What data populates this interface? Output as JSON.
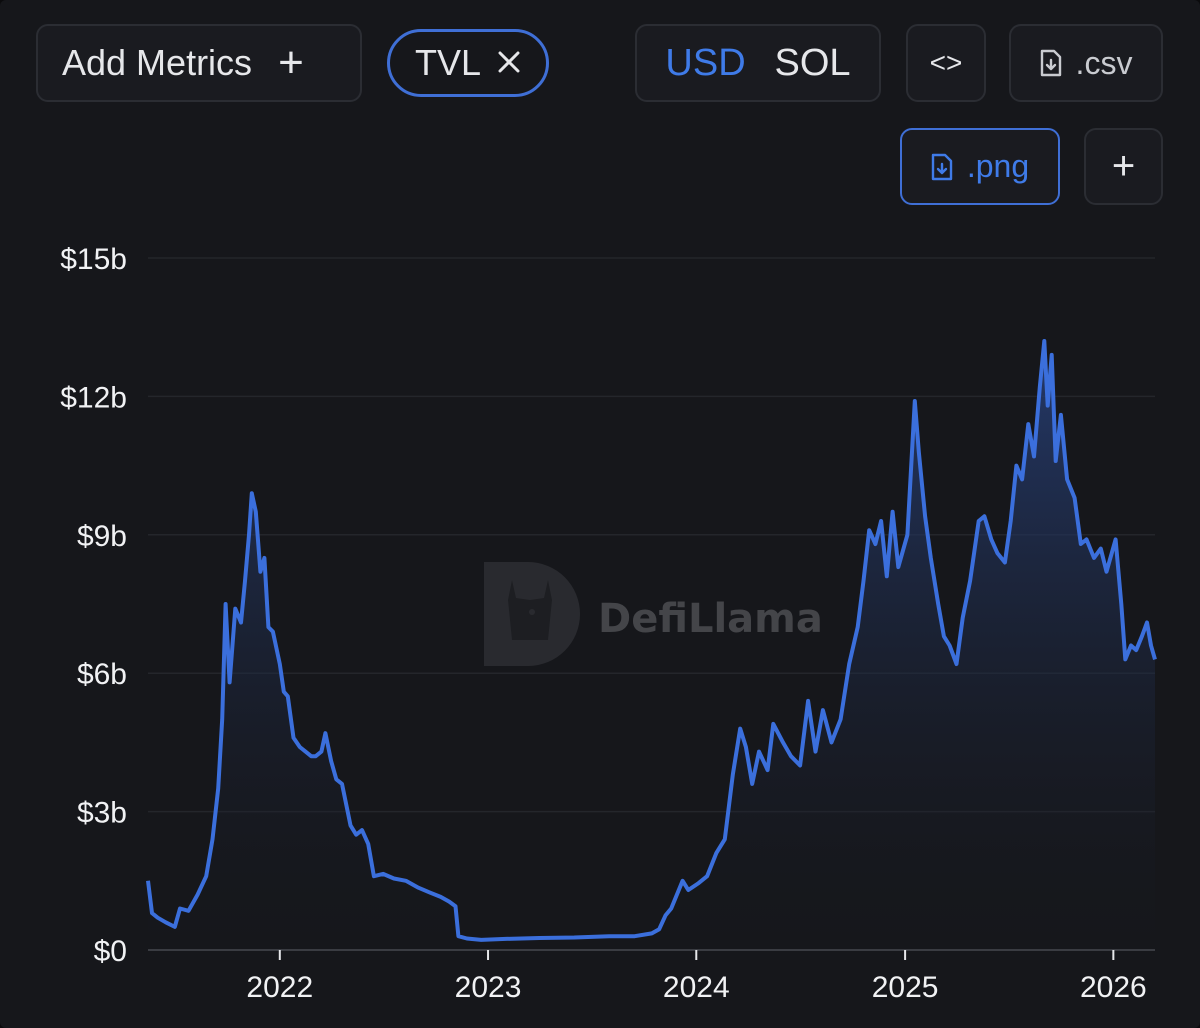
{
  "toolbar": {
    "add_metrics_label": "Add Metrics",
    "add_metrics_icon": "plus-icon",
    "metric_chip_label": "TVL",
    "metric_chip_icon": "close-icon",
    "currency_options": [
      "USD",
      "SOL"
    ],
    "currency_selected": "USD",
    "embed_label": "<>",
    "csv_label": ".csv",
    "png_label": ".png",
    "more_label": "+"
  },
  "watermark": {
    "text": "DefiLlama",
    "icon": "llama-logo-icon"
  },
  "colors": {
    "accent": "#3f7be8",
    "line": "#3b6fdc",
    "background": "#16171b"
  },
  "chart_data": {
    "type": "area",
    "title": "",
    "xlabel": "",
    "ylabel": "",
    "ylim": [
      0,
      15000000000
    ],
    "y_ticks": [
      "$15b",
      "$12b",
      "$9b",
      "$6b",
      "$3b",
      "$0"
    ],
    "x_ticks": [
      "2022",
      "2023",
      "2024",
      "2025",
      "2026"
    ],
    "grid": "horizontal",
    "series": [
      {
        "values_unit": "USD billions",
        "points": [
          [
            "2021-05-15",
            1.5
          ],
          [
            "2021-05-22",
            0.8
          ],
          [
            "2021-06-01",
            0.7
          ],
          [
            "2021-06-15",
            0.6
          ],
          [
            "2021-07-01",
            0.5
          ],
          [
            "2021-07-10",
            0.9
          ],
          [
            "2021-07-25",
            0.85
          ],
          [
            "2021-08-10",
            1.2
          ],
          [
            "2021-08-25",
            1.6
          ],
          [
            "2021-09-05",
            2.4
          ],
          [
            "2021-09-15",
            3.5
          ],
          [
            "2021-09-22",
            5.0
          ],
          [
            "2021-09-28",
            7.5
          ],
          [
            "2021-10-05",
            5.8
          ],
          [
            "2021-10-15",
            7.4
          ],
          [
            "2021-10-25",
            7.1
          ],
          [
            "2021-11-01",
            8.0
          ],
          [
            "2021-11-08",
            9.0
          ],
          [
            "2021-11-13",
            9.9
          ],
          [
            "2021-11-20",
            9.5
          ],
          [
            "2021-11-28",
            8.2
          ],
          [
            "2021-12-05",
            8.5
          ],
          [
            "2021-12-12",
            7.0
          ],
          [
            "2021-12-20",
            6.9
          ],
          [
            "2022-01-01",
            6.2
          ],
          [
            "2022-01-08",
            5.6
          ],
          [
            "2022-01-15",
            5.5
          ],
          [
            "2022-01-25",
            4.6
          ],
          [
            "2022-02-05",
            4.4
          ],
          [
            "2022-02-15",
            4.3
          ],
          [
            "2022-02-25",
            4.2
          ],
          [
            "2022-03-05",
            4.2
          ],
          [
            "2022-03-15",
            4.3
          ],
          [
            "2022-03-22",
            4.7
          ],
          [
            "2022-04-01",
            4.1
          ],
          [
            "2022-04-10",
            3.7
          ],
          [
            "2022-04-20",
            3.6
          ],
          [
            "2022-05-05",
            2.7
          ],
          [
            "2022-05-15",
            2.5
          ],
          [
            "2022-05-25",
            2.6
          ],
          [
            "2022-06-05",
            2.3
          ],
          [
            "2022-06-15",
            1.6
          ],
          [
            "2022-07-01",
            1.65
          ],
          [
            "2022-07-20",
            1.55
          ],
          [
            "2022-08-10",
            1.5
          ],
          [
            "2022-09-01",
            1.35
          ],
          [
            "2022-09-20",
            1.25
          ],
          [
            "2022-10-10",
            1.15
          ],
          [
            "2022-10-25",
            1.05
          ],
          [
            "2022-11-05",
            0.95
          ],
          [
            "2022-11-10",
            0.3
          ],
          [
            "2022-11-25",
            0.25
          ],
          [
            "2022-12-20",
            0.22
          ],
          [
            "2023-02-01",
            0.24
          ],
          [
            "2023-04-01",
            0.26
          ],
          [
            "2023-06-01",
            0.27
          ],
          [
            "2023-08-01",
            0.3
          ],
          [
            "2023-09-15",
            0.3
          ],
          [
            "2023-10-15",
            0.36
          ],
          [
            "2023-10-28",
            0.45
          ],
          [
            "2023-11-08",
            0.75
          ],
          [
            "2023-11-18",
            0.9
          ],
          [
            "2023-11-28",
            1.2
          ],
          [
            "2023-12-08",
            1.5
          ],
          [
            "2023-12-18",
            1.3
          ],
          [
            "2024-01-05",
            1.45
          ],
          [
            "2024-01-20",
            1.6
          ],
          [
            "2024-02-05",
            2.1
          ],
          [
            "2024-02-20",
            2.4
          ],
          [
            "2024-03-05",
            3.8
          ],
          [
            "2024-03-18",
            4.8
          ],
          [
            "2024-03-28",
            4.4
          ],
          [
            "2024-04-08",
            3.6
          ],
          [
            "2024-04-20",
            4.3
          ],
          [
            "2024-05-05",
            3.9
          ],
          [
            "2024-05-15",
            4.9
          ],
          [
            "2024-06-01",
            4.5
          ],
          [
            "2024-06-15",
            4.2
          ],
          [
            "2024-07-01",
            4.0
          ],
          [
            "2024-07-15",
            5.4
          ],
          [
            "2024-07-28",
            4.3
          ],
          [
            "2024-08-10",
            5.2
          ],
          [
            "2024-08-25",
            4.5
          ],
          [
            "2024-09-10",
            5.0
          ],
          [
            "2024-09-25",
            6.2
          ],
          [
            "2024-10-10",
            7.0
          ],
          [
            "2024-10-20",
            8.0
          ],
          [
            "2024-10-30",
            9.1
          ],
          [
            "2024-11-10",
            8.8
          ],
          [
            "2024-11-20",
            9.3
          ],
          [
            "2024-11-30",
            8.1
          ],
          [
            "2024-12-10",
            9.5
          ],
          [
            "2024-12-20",
            8.3
          ],
          [
            "2025-01-05",
            9.0
          ],
          [
            "2025-01-18",
            11.9
          ],
          [
            "2025-01-25",
            10.8
          ],
          [
            "2025-02-05",
            9.4
          ],
          [
            "2025-02-15",
            8.5
          ],
          [
            "2025-02-28",
            7.5
          ],
          [
            "2025-03-10",
            6.8
          ],
          [
            "2025-03-20",
            6.6
          ],
          [
            "2025-04-01",
            6.2
          ],
          [
            "2025-04-12",
            7.2
          ],
          [
            "2025-04-25",
            8.0
          ],
          [
            "2025-05-10",
            9.3
          ],
          [
            "2025-05-20",
            9.4
          ],
          [
            "2025-06-01",
            8.9
          ],
          [
            "2025-06-12",
            8.6
          ],
          [
            "2025-06-25",
            8.4
          ],
          [
            "2025-07-05",
            9.3
          ],
          [
            "2025-07-15",
            10.5
          ],
          [
            "2025-07-25",
            10.2
          ],
          [
            "2025-08-05",
            11.4
          ],
          [
            "2025-08-15",
            10.7
          ],
          [
            "2025-08-25",
            12.2
          ],
          [
            "2025-09-02",
            13.2
          ],
          [
            "2025-09-08",
            11.8
          ],
          [
            "2025-09-15",
            12.9
          ],
          [
            "2025-09-22",
            10.6
          ],
          [
            "2025-10-01",
            11.6
          ],
          [
            "2025-10-12",
            10.2
          ],
          [
            "2025-10-25",
            9.8
          ],
          [
            "2025-11-05",
            8.8
          ],
          [
            "2025-11-15",
            8.9
          ],
          [
            "2025-11-28",
            8.5
          ],
          [
            "2025-12-10",
            8.7
          ],
          [
            "2025-12-20",
            8.2
          ],
          [
            "2026-01-05",
            8.9
          ],
          [
            "2026-01-15",
            7.5
          ],
          [
            "2026-01-22",
            6.3
          ],
          [
            "2026-02-01",
            6.6
          ],
          [
            "2026-02-10",
            6.5
          ],
          [
            "2026-02-20",
            6.8
          ],
          [
            "2026-03-01",
            7.1
          ],
          [
            "2026-03-08",
            6.6
          ],
          [
            "2026-03-15",
            6.3
          ]
        ]
      }
    ]
  }
}
